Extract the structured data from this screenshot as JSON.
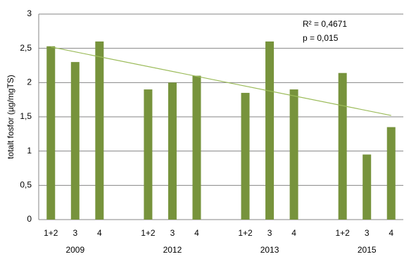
{
  "chart_data": {
    "type": "bar",
    "y_label": "totalt fosfor (µg/mgTS)",
    "annotations": [
      "R² = 0,4671",
      "p = 0,015"
    ],
    "categories": [
      "1+2",
      "3",
      "4",
      null,
      "1+2",
      "3",
      "4",
      null,
      "1+2",
      "3",
      "4",
      null,
      "1+2",
      "3",
      "4"
    ],
    "groups": [
      "2009",
      "2012",
      "2013",
      "2015"
    ],
    "values": [
      2.53,
      2.3,
      2.6,
      null,
      1.9,
      2.0,
      2.1,
      null,
      1.85,
      2.6,
      1.9,
      null,
      2.14,
      0.95,
      1.35
    ],
    "color": "#77933c",
    "trendline": {
      "start": 2.52,
      "end": 1.52,
      "color": "#9bbb59"
    },
    "ylim": [
      0,
      3
    ],
    "yticks": [
      0,
      {
        "value": 0.5,
        "label": "0,5"
      },
      1,
      {
        "value": 1.5,
        "label": "1,5"
      },
      2,
      {
        "value": 2.5,
        "label": "2,5"
      },
      3
    ],
    "grid": true
  }
}
